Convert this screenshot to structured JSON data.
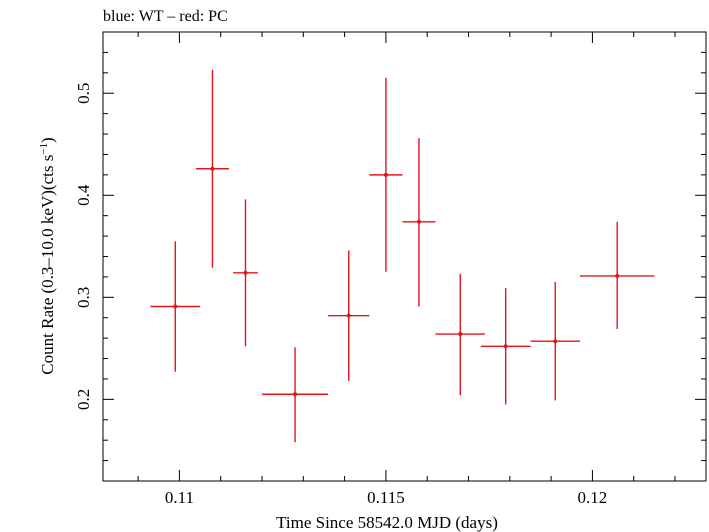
{
  "chart_data": {
    "type": "scatter",
    "title": "blue: WT – red: PC",
    "xlabel": "Time Since 58542.0 MJD (days)",
    "ylabel": "Count Rate (0.3–10.0 keV)(cts s",
    "ylabel_sup": "−1",
    "ylabel_close": ")",
    "xlim": [
      0.10815,
      0.12275
    ],
    "ylim": [
      0.12,
      0.56
    ],
    "x_ticks": [
      {
        "value": 0.11,
        "label": "0.11"
      },
      {
        "value": 0.115,
        "label": "0.115"
      },
      {
        "value": 0.12,
        "label": "0.12"
      }
    ],
    "y_ticks": [
      {
        "value": 0.2,
        "label": "0.2"
      },
      {
        "value": 0.3,
        "label": "0.3"
      },
      {
        "value": 0.4,
        "label": "0.4"
      },
      {
        "value": 0.5,
        "label": "0.5"
      }
    ],
    "grid": false,
    "series": [
      {
        "color": "#e0141a",
        "points": [
          {
            "x": 0.1099,
            "xerr": 0.0006,
            "y": 0.291,
            "yerr_low": 0.064,
            "yerr_high": 0.064
          },
          {
            "x": 0.1108,
            "xerr": 0.0004,
            "y": 0.426,
            "yerr_low": 0.097,
            "yerr_high": 0.097
          },
          {
            "x": 0.1116,
            "xerr": 0.0003,
            "y": 0.324,
            "yerr_low": 0.072,
            "yerr_high": 0.072
          },
          {
            "x": 0.1128,
            "xerr": 0.0008,
            "y": 0.205,
            "yerr_low": 0.047,
            "yerr_high": 0.046
          },
          {
            "x": 0.1141,
            "xerr": 0.0005,
            "y": 0.282,
            "yerr_low": 0.064,
            "yerr_high": 0.064
          },
          {
            "x": 0.115,
            "xerr": 0.0004,
            "y": 0.42,
            "yerr_low": 0.095,
            "yerr_high": 0.095
          },
          {
            "x": 0.1158,
            "xerr": 0.0004,
            "y": 0.374,
            "yerr_low": 0.083,
            "yerr_high": 0.082
          },
          {
            "x": 0.1168,
            "xerr": 0.0006,
            "y": 0.264,
            "yerr_low": 0.06,
            "yerr_high": 0.059
          },
          {
            "x": 0.1179,
            "xerr": 0.0006,
            "y": 0.252,
            "yerr_low": 0.057,
            "yerr_high": 0.057
          },
          {
            "x": 0.1191,
            "xerr": 0.0006,
            "y": 0.257,
            "yerr_low": 0.058,
            "yerr_high": 0.058
          },
          {
            "x": 0.1206,
            "xerr": 0.0009,
            "y": 0.321,
            "yerr_low": 0.052,
            "yerr_high": 0.053
          }
        ]
      }
    ]
  }
}
